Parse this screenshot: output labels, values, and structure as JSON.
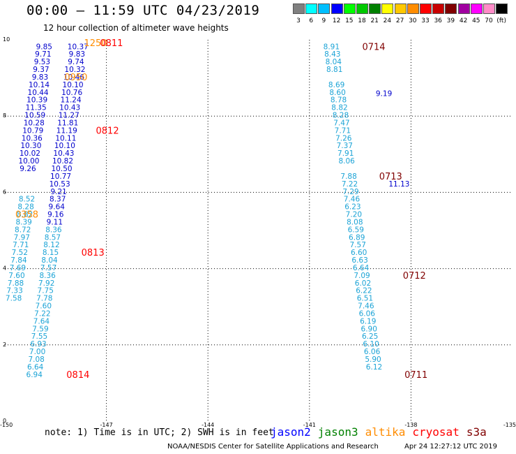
{
  "header": {
    "title": "00:00 – 11:59 UTC 04/23/2019",
    "subtitle": "12 hour collection of altimeter wave heights"
  },
  "color_scale": {
    "swatches": [
      "#808080",
      "#00ffff",
      "#00bfff",
      "#0000ff",
      "#00ff00",
      "#00c800",
      "#008000",
      "#ffff00",
      "#ffc800",
      "#ff8c00",
      "#ff0000",
      "#c80000",
      "#800000",
      "#a000a0",
      "#ff00ff",
      "#ff8cc8",
      "#000000"
    ],
    "labels": [
      "3",
      "6",
      "9",
      "12",
      "15",
      "18",
      "21",
      "24",
      "27",
      "30",
      "33",
      "36",
      "39",
      "42",
      "45",
      "70",
      "(ft)"
    ]
  },
  "footer": {
    "note": "note: 1) Time is in UTC; 2) SWH is in feet",
    "satellites": [
      {
        "name": "jason2",
        "color": "#0000ff"
      },
      {
        "name": "jason3",
        "color": "#008000"
      },
      {
        "name": "altika",
        "color": "#ff8c00"
      },
      {
        "name": "cryosat",
        "color": "#ff0000"
      },
      {
        "name": "s3a",
        "color": "#800000"
      }
    ],
    "credit": "NOAA/NESDIS Center for Satellite Applications and Research",
    "timestamp": "Apr 24 12:27:12 UTC 2019"
  },
  "chart_data": {
    "type": "scatter",
    "title": "12 hour collection of altimeter wave heights",
    "xlim": [
      -150,
      -135
    ],
    "ylim": [
      0,
      10
    ],
    "x_ticks": [
      "-150",
      "-147",
      "-144",
      "-141",
      "-138",
      "-135"
    ],
    "y_ticks": [
      "0",
      "2",
      "4",
      "6",
      "8",
      "10"
    ],
    "grid": true,
    "colors": {
      "teal": "#1ba3d6",
      "blue": "#0000cc",
      "orange": "#ff8c00",
      "red": "#ff0000",
      "maroon": "#800000"
    },
    "tracks": [
      {
        "satellite": "jason2",
        "color": "blue",
        "points": [
          [
            -148.84,
            9.83,
            "9.85"
          ],
          [
            -148.87,
            9.63,
            "9.71"
          ],
          [
            -148.9,
            9.43,
            "9.53"
          ],
          [
            -148.93,
            9.23,
            "9.37"
          ],
          [
            -148.96,
            9.03,
            "9.83"
          ],
          [
            -148.99,
            8.83,
            "10.14"
          ],
          [
            -149.02,
            8.63,
            "10.44"
          ],
          [
            -149.05,
            8.43,
            "10.39"
          ],
          [
            -149.08,
            8.23,
            "11.35"
          ],
          [
            -149.11,
            8.03,
            "10.59"
          ],
          [
            -149.14,
            7.83,
            "10.28"
          ],
          [
            -149.17,
            7.63,
            "10.79"
          ],
          [
            -149.2,
            7.43,
            "10.36"
          ],
          [
            -149.23,
            7.23,
            "10.30"
          ],
          [
            -149.26,
            7.03,
            "10.02"
          ],
          [
            -149.29,
            6.83,
            "10.00"
          ],
          [
            -149.32,
            6.63,
            "9.26"
          ],
          [
            -147.84,
            9.83,
            "10.37"
          ],
          [
            -147.87,
            9.63,
            "9.83"
          ],
          [
            -147.9,
            9.43,
            "9.74"
          ],
          [
            -147.93,
            9.23,
            "10.32"
          ],
          [
            -147.96,
            9.03,
            "10.46"
          ],
          [
            -147.99,
            8.83,
            "10.10"
          ],
          [
            -148.02,
            8.63,
            "10.76"
          ],
          [
            -148.05,
            8.43,
            "11.24"
          ],
          [
            -148.08,
            8.23,
            "10.43"
          ],
          [
            -148.11,
            8.03,
            "11.27"
          ],
          [
            -148.14,
            7.83,
            "11.81"
          ],
          [
            -148.17,
            7.63,
            "11.19"
          ],
          [
            -148.2,
            7.43,
            "10.11"
          ],
          [
            -148.23,
            7.23,
            "10.10"
          ],
          [
            -148.26,
            7.03,
            "10.43"
          ],
          [
            -148.29,
            6.83,
            "10.82"
          ],
          [
            -148.32,
            6.63,
            "10.50"
          ],
          [
            -148.35,
            6.43,
            "10.77"
          ],
          [
            -148.38,
            6.23,
            "10.53"
          ],
          [
            -148.41,
            6.03,
            "9.21"
          ],
          [
            -148.44,
            5.83,
            "8.37"
          ],
          [
            -148.47,
            5.63,
            "9.64"
          ],
          [
            -148.5,
            5.43,
            "9.16"
          ],
          [
            -148.53,
            5.23,
            "9.11"
          ],
          [
            -138.8,
            8.6,
            "9.19"
          ],
          [
            -138.35,
            6.23,
            "11.13"
          ]
        ]
      },
      {
        "satellite": "jason2",
        "color": "teal",
        "points": [
          [
            -149.35,
            5.83,
            "8.52"
          ],
          [
            -149.38,
            5.63,
            "8.28"
          ],
          [
            -149.41,
            5.43,
            "8.82"
          ],
          [
            -149.44,
            5.23,
            "8.39"
          ],
          [
            -149.47,
            5.03,
            "8.72"
          ],
          [
            -149.5,
            4.83,
            "7.97"
          ],
          [
            -149.53,
            4.63,
            "7.71"
          ],
          [
            -149.56,
            4.43,
            "7.52"
          ],
          [
            -149.59,
            4.23,
            "7.84"
          ],
          [
            -149.62,
            4.03,
            "7.69"
          ],
          [
            -149.65,
            3.83,
            "7.60"
          ],
          [
            -149.68,
            3.63,
            "7.88"
          ],
          [
            -149.71,
            3.43,
            "7.33"
          ],
          [
            -149.74,
            3.23,
            "7.58"
          ],
          [
            -148.56,
            5.03,
            "8.36"
          ],
          [
            -148.59,
            4.83,
            "8.57"
          ],
          [
            -148.62,
            4.63,
            "8.12"
          ],
          [
            -148.65,
            4.43,
            "8.15"
          ],
          [
            -148.68,
            4.23,
            "8.04"
          ],
          [
            -148.71,
            4.03,
            "7.57"
          ],
          [
            -148.74,
            3.83,
            "8.36"
          ],
          [
            -148.77,
            3.63,
            "7.92"
          ],
          [
            -148.8,
            3.43,
            "7.75"
          ],
          [
            -148.83,
            3.23,
            "7.78"
          ],
          [
            -148.86,
            3.03,
            "7.60"
          ],
          [
            -148.89,
            2.83,
            "7.22"
          ],
          [
            -148.92,
            2.63,
            "7.64"
          ],
          [
            -148.95,
            2.43,
            "7.59"
          ],
          [
            -148.98,
            2.23,
            "7.55"
          ],
          [
            -149.01,
            2.03,
            "6.93"
          ],
          [
            -149.04,
            1.83,
            "7.00"
          ],
          [
            -149.07,
            1.63,
            "7.08"
          ],
          [
            -149.1,
            1.43,
            "6.64"
          ],
          [
            -149.13,
            1.23,
            "6.94"
          ],
          [
            -140.35,
            9.83,
            "8.91"
          ],
          [
            -140.32,
            9.63,
            "8.43"
          ],
          [
            -140.29,
            9.43,
            "8.04"
          ],
          [
            -140.26,
            9.23,
            "8.81"
          ],
          [
            -140.2,
            8.83,
            "8.69"
          ],
          [
            -140.17,
            8.63,
            "8.60"
          ],
          [
            -140.14,
            8.43,
            "8.78"
          ],
          [
            -140.11,
            8.23,
            "8.82"
          ],
          [
            -140.08,
            8.03,
            "8.28"
          ],
          [
            -140.05,
            7.83,
            "7.47"
          ],
          [
            -140.02,
            7.63,
            "7.71"
          ],
          [
            -139.99,
            7.43,
            "7.26"
          ],
          [
            -139.96,
            7.23,
            "7.37"
          ],
          [
            -139.93,
            7.03,
            "7.91"
          ],
          [
            -139.9,
            6.83,
            "8.06"
          ],
          [
            -139.84,
            6.43,
            "7.88"
          ],
          [
            -139.81,
            6.23,
            "7.22"
          ],
          [
            -139.78,
            6.03,
            "7.29"
          ],
          [
            -139.75,
            5.83,
            "7.46"
          ],
          [
            -139.72,
            5.63,
            "6.23"
          ],
          [
            -139.69,
            5.43,
            "7.20"
          ],
          [
            -139.66,
            5.23,
            "8.08"
          ],
          [
            -139.63,
            5.03,
            "6.59"
          ],
          [
            -139.6,
            4.83,
            "6.89"
          ],
          [
            -139.57,
            4.63,
            "7.57"
          ],
          [
            -139.54,
            4.43,
            "6.60"
          ],
          [
            -139.51,
            4.23,
            "6.63"
          ],
          [
            -139.48,
            4.03,
            "6.64"
          ],
          [
            -139.45,
            3.83,
            "7.09"
          ],
          [
            -139.42,
            3.63,
            "6.02"
          ],
          [
            -139.39,
            3.43,
            "6.22"
          ],
          [
            -139.36,
            3.23,
            "6.51"
          ],
          [
            -139.33,
            3.03,
            "7.46"
          ],
          [
            -139.3,
            2.83,
            "6.06"
          ],
          [
            -139.27,
            2.63,
            "6.19"
          ],
          [
            -139.24,
            2.43,
            "6.90"
          ],
          [
            -139.21,
            2.23,
            "6.25"
          ],
          [
            -139.18,
            2.03,
            "6.10"
          ],
          [
            -139.15,
            1.83,
            "6.06"
          ],
          [
            -139.12,
            1.63,
            "5.90"
          ],
          [
            -139.09,
            1.43,
            "6.12"
          ]
        ]
      }
    ],
    "time_labels": [
      {
        "x": -147.32,
        "y": 9.93,
        "text": "1250",
        "color": "orange"
      },
      {
        "x": -146.85,
        "y": 9.93,
        "text": "0811",
        "color": "red"
      },
      {
        "x": -147.9,
        "y": 9.03,
        "text": "0950",
        "color": "orange"
      },
      {
        "x": -146.97,
        "y": 7.63,
        "text": "0812",
        "color": "red"
      },
      {
        "x": -149.35,
        "y": 5.43,
        "text": "0358",
        "color": "orange"
      },
      {
        "x": -147.4,
        "y": 4.43,
        "text": "0813",
        "color": "red"
      },
      {
        "x": -147.84,
        "y": 1.23,
        "text": "0814",
        "color": "red"
      },
      {
        "x": -139.1,
        "y": 9.83,
        "text": "0714",
        "color": "maroon"
      },
      {
        "x": -138.6,
        "y": 6.43,
        "text": "0713",
        "color": "maroon"
      },
      {
        "x": -137.9,
        "y": 3.83,
        "text": "0712",
        "color": "maroon"
      },
      {
        "x": -137.85,
        "y": 1.23,
        "text": "0711",
        "color": "maroon"
      }
    ]
  }
}
